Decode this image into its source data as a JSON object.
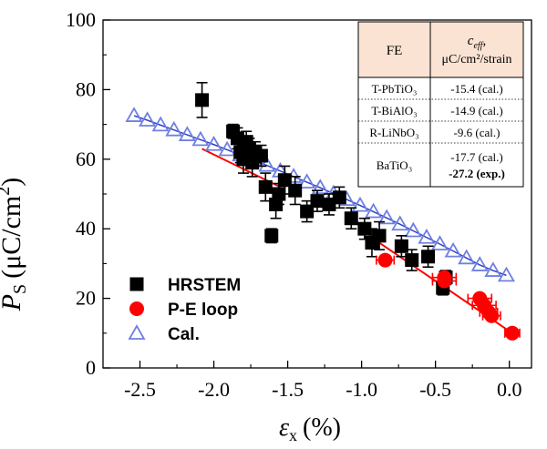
{
  "chart_data": {
    "type": "scatter",
    "xlabel": {
      "symbol": "ε",
      "subscript": "x",
      "unit": "(%)"
    },
    "ylabel": {
      "symbol": "P",
      "subscript": "S",
      "unit_pre": "(μC/cm",
      "unit_sup": "2",
      "unit_post": ")"
    },
    "xlim": [
      -2.75,
      0.15
    ],
    "ylim": [
      0,
      100
    ],
    "xticks": [
      -2.5,
      -2.0,
      -1.5,
      -1.0,
      -0.5,
      0.0
    ],
    "xtick_labels": [
      "-2.5",
      "-2.0",
      "-1.5",
      "-1.0",
      "-0.5",
      "0.0"
    ],
    "yticks": [
      0,
      20,
      40,
      60,
      80,
      100
    ],
    "ytick_labels": [
      "0",
      "20",
      "40",
      "60",
      "80",
      "100"
    ],
    "legend_position": "bottom-left",
    "series": [
      {
        "name": "HRSTEM",
        "marker": "square",
        "color": "#000000",
        "points": [
          {
            "x": -2.08,
            "y": 77,
            "err": 5
          },
          {
            "x": -1.87,
            "y": 68,
            "err": 2
          },
          {
            "x": -1.84,
            "y": 66,
            "err": 3
          },
          {
            "x": -1.82,
            "y": 62,
            "err": 3
          },
          {
            "x": -1.8,
            "y": 60,
            "err": 4
          },
          {
            "x": -1.78,
            "y": 65,
            "err": 3
          },
          {
            "x": -1.76,
            "y": 63,
            "err": 3
          },
          {
            "x": -1.74,
            "y": 59,
            "err": 4
          },
          {
            "x": -1.72,
            "y": 62,
            "err": 3
          },
          {
            "x": -1.68,
            "y": 61,
            "err": 3
          },
          {
            "x": -1.65,
            "y": 52,
            "err": 4
          },
          {
            "x": -1.61,
            "y": 38,
            "err": 2
          },
          {
            "x": -1.58,
            "y": 47,
            "err": 4
          },
          {
            "x": -1.56,
            "y": 50,
            "err": 3
          },
          {
            "x": -1.52,
            "y": 54,
            "err": 4
          },
          {
            "x": -1.45,
            "y": 51,
            "err": 4
          },
          {
            "x": -1.37,
            "y": 45,
            "err": 3
          },
          {
            "x": -1.3,
            "y": 48,
            "err": 3
          },
          {
            "x": -1.22,
            "y": 47,
            "err": 3
          },
          {
            "x": -1.15,
            "y": 49,
            "err": 3
          },
          {
            "x": -1.07,
            "y": 43,
            "err": 3
          },
          {
            "x": -0.98,
            "y": 40,
            "err": 3
          },
          {
            "x": -0.93,
            "y": 36,
            "err": 4
          },
          {
            "x": -0.88,
            "y": 38,
            "err": 4
          },
          {
            "x": -0.73,
            "y": 35,
            "err": 3
          },
          {
            "x": -0.66,
            "y": 31,
            "err": 3
          },
          {
            "x": -0.55,
            "y": 32,
            "err": 3
          },
          {
            "x": -0.45,
            "y": 23,
            "err": 2
          },
          {
            "x": -0.43,
            "y": 26,
            "err": 2
          }
        ]
      },
      {
        "name": "P-E loop",
        "marker": "circle",
        "color": "#ff0000",
        "points": [
          {
            "x": -0.84,
            "y": 31,
            "xerr": 0.06,
            "yerr": 2
          },
          {
            "x": -0.44,
            "y": 26,
            "xerr": 0.08,
            "yerr": 2
          },
          {
            "x": -0.44,
            "y": 25,
            "xerr": 0.08,
            "yerr": 2
          },
          {
            "x": -0.2,
            "y": 20,
            "xerr": 0.08,
            "yerr": 2
          },
          {
            "x": -0.17,
            "y": 18,
            "xerr": 0.08,
            "yerr": 2
          },
          {
            "x": -0.14,
            "y": 16,
            "xerr": 0.06,
            "yerr": 2
          },
          {
            "x": -0.12,
            "y": 15,
            "xerr": 0.06,
            "yerr": 2
          },
          {
            "x": 0.02,
            "y": 10,
            "xerr": 0.05,
            "yerr": 1
          }
        ]
      },
      {
        "name": "Cal.",
        "marker": "open-triangle",
        "color": "#6f80e0",
        "points": [
          {
            "x": -2.54,
            "y": 72.5
          },
          {
            "x": -2.45,
            "y": 71.2
          },
          {
            "x": -2.36,
            "y": 69.8
          },
          {
            "x": -2.27,
            "y": 68.4
          },
          {
            "x": -2.18,
            "y": 67.0
          },
          {
            "x": -2.09,
            "y": 65.6
          },
          {
            "x": -2.0,
            "y": 64.2
          },
          {
            "x": -1.91,
            "y": 62.7
          },
          {
            "x": -1.82,
            "y": 61.2
          },
          {
            "x": -1.73,
            "y": 59.7
          },
          {
            "x": -1.64,
            "y": 58.2
          },
          {
            "x": -1.55,
            "y": 56.6
          },
          {
            "x": -1.46,
            "y": 55.0
          },
          {
            "x": -1.37,
            "y": 53.4
          },
          {
            "x": -1.28,
            "y": 51.8
          },
          {
            "x": -1.19,
            "y": 50.1
          },
          {
            "x": -1.1,
            "y": 48.4
          },
          {
            "x": -1.01,
            "y": 46.7
          },
          {
            "x": -0.92,
            "y": 44.9
          },
          {
            "x": -0.83,
            "y": 43.1
          },
          {
            "x": -0.74,
            "y": 41.3
          },
          {
            "x": -0.65,
            "y": 39.4
          },
          {
            "x": -0.56,
            "y": 37.5
          },
          {
            "x": -0.47,
            "y": 35.6
          },
          {
            "x": -0.38,
            "y": 33.6
          },
          {
            "x": -0.29,
            "y": 31.6
          },
          {
            "x": -0.2,
            "y": 29.6
          },
          {
            "x": -0.11,
            "y": 28.0
          },
          {
            "x": -0.02,
            "y": 26.6
          }
        ]
      }
    ],
    "fit_lines": [
      {
        "color": "#ff0000",
        "x": [
          -2.08,
          -1.55
        ],
        "y": [
          63,
          52
        ]
      },
      {
        "color": "#ff0000",
        "x": [
          -0.95,
          0.02
        ],
        "y": [
          38,
          10
        ]
      }
    ],
    "table": {
      "headers": {
        "fe": "FE",
        "ceff_symbol": "c",
        "ceff_sub": "eff",
        "ceff_suffix": ",",
        "ceff_unit": "μC/cm²/strain"
      },
      "rows": [
        {
          "fe": "T-PbTiO₃",
          "ceff": "-15.4 (cal.)"
        },
        {
          "fe": "T-BiAlO₃",
          "ceff": "-14.9 (cal.)"
        },
        {
          "fe": "R-LiNbO₃",
          "ceff": "-9.6 (cal.)"
        },
        {
          "fe": "BaTiO₃",
          "ceff": "-17.7 (cal.)",
          "ceff2": "-27.2 (exp.)"
        }
      ],
      "header_bg": "#fbe3d3"
    }
  }
}
